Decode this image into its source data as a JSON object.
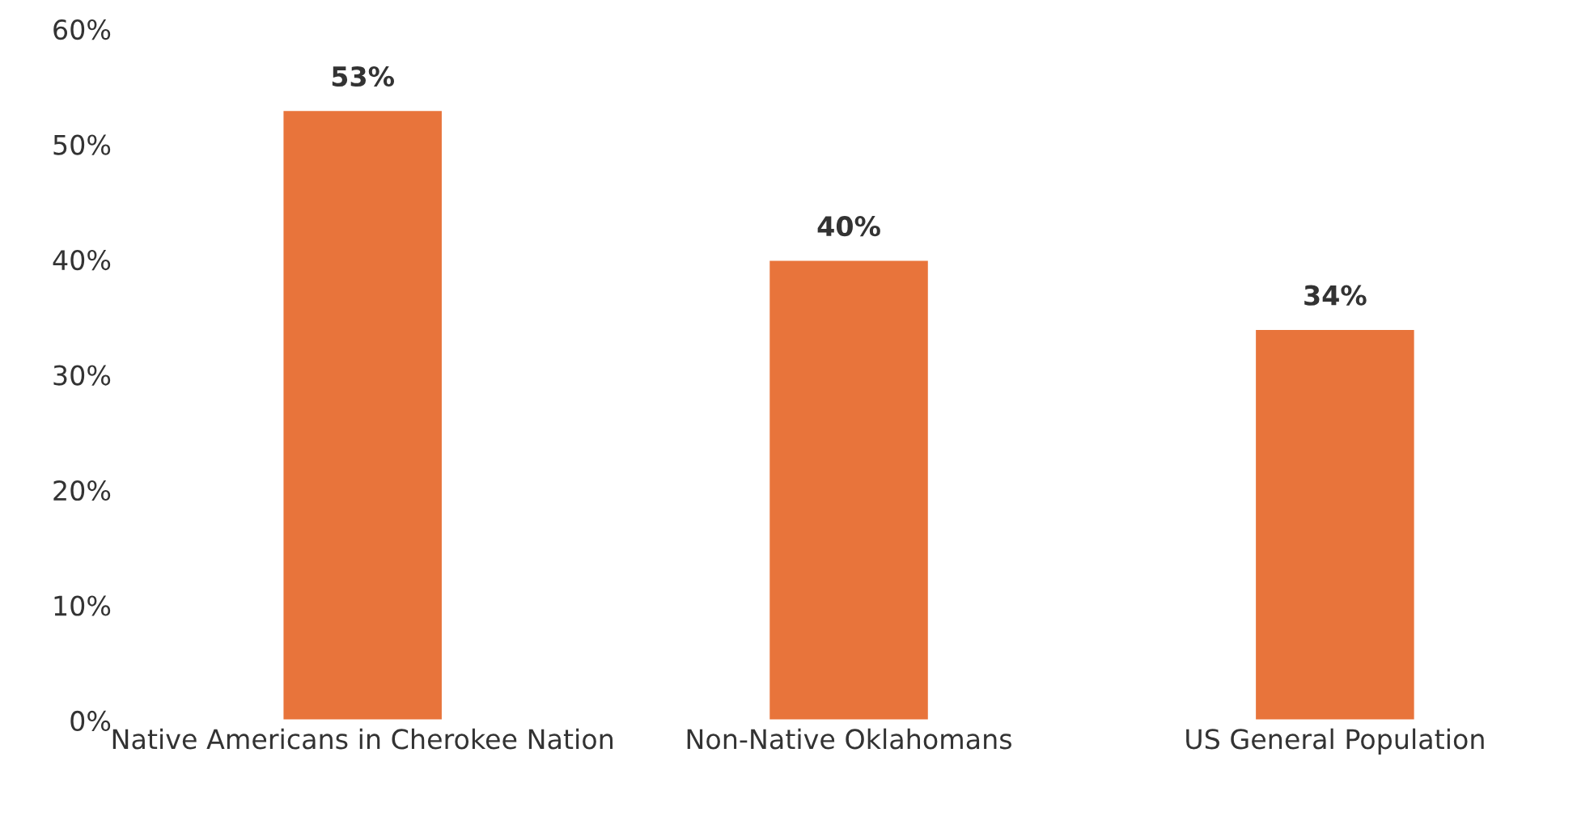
{
  "chart_data": {
    "type": "bar",
    "categories": [
      "Native Americans in Cherokee Nation",
      "Non-Native Oklahomans",
      "US General Population"
    ],
    "values": [
      53,
      40,
      34
    ],
    "value_labels": [
      "53%",
      "40%",
      "34%"
    ],
    "color": "#e8743b",
    "ylim": [
      0,
      60
    ],
    "yticks": [
      {
        "value": 0,
        "label": "0%"
      },
      {
        "value": 10,
        "label": "10%"
      },
      {
        "value": 20,
        "label": "20%"
      },
      {
        "value": 30,
        "label": "30%"
      },
      {
        "value": 40,
        "label": "40%"
      },
      {
        "value": 50,
        "label": "50%"
      },
      {
        "value": 60,
        "label": "60%"
      }
    ],
    "grid": false,
    "legend": false
  }
}
